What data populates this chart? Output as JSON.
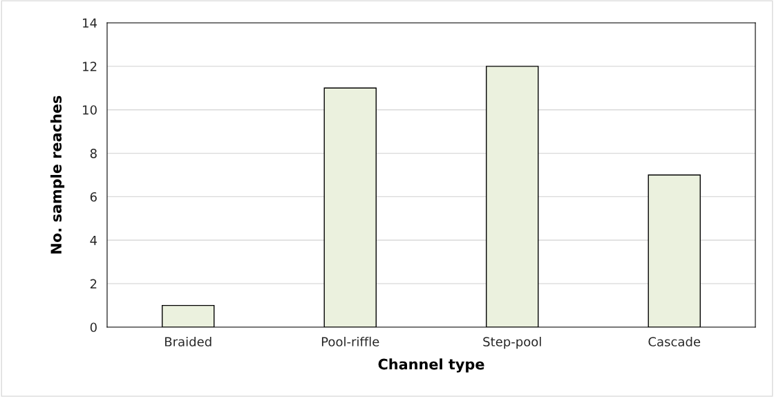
{
  "chart_data": {
    "type": "bar",
    "xlabel": "Channel type",
    "ylabel": "No. sample reaches",
    "categories": [
      "Braided",
      "Pool-riffle",
      "Step-pool",
      "Cascade"
    ],
    "values": [
      1,
      11,
      12,
      7
    ],
    "color": "#ebf1de",
    "ylim": [
      0,
      14
    ],
    "yticks": [
      0,
      2,
      4,
      6,
      8,
      10,
      12,
      14
    ],
    "grid": "y"
  }
}
